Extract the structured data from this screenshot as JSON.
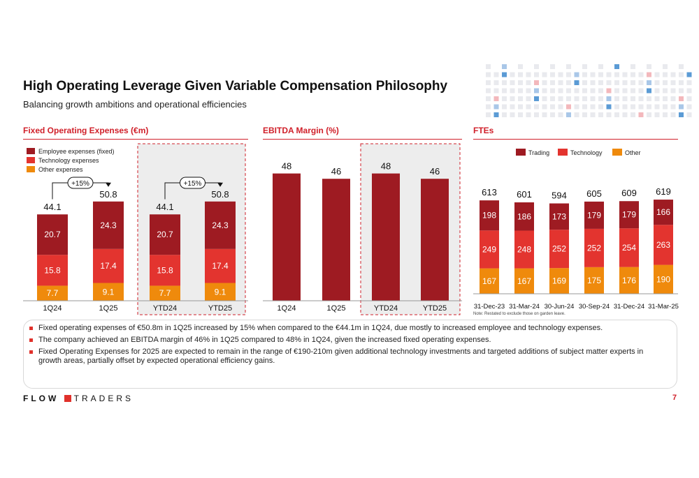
{
  "header": {
    "title": "High Operating Leverage Given Variable Compensation Philosophy",
    "subtitle": "Balancing growth ambitions and operational efficiencies"
  },
  "sections": {
    "fixed_opex": "Fixed Operating Expenses (€m)",
    "ebitda": "EBITDA Margin (%)",
    "ftes": "FTEs"
  },
  "colors": {
    "employee": "#9e1b22",
    "technology": "#e3342f",
    "other": "#ef8a0c",
    "accent": "#d0202a",
    "highlight_bg": "#ededed"
  },
  "chart_data": [
    {
      "id": "fixed_opex",
      "type": "bar",
      "stacked": true,
      "title": "Fixed Operating Expenses (€m)",
      "categories": [
        "1Q24",
        "1Q25",
        "YTD24",
        "YTD25"
      ],
      "series": [
        {
          "name": "Employee expenses (fixed)",
          "values": [
            20.7,
            24.3,
            20.7,
            24.3
          ]
        },
        {
          "name": "Technology expenses",
          "values": [
            15.8,
            17.4,
            15.8,
            17.4
          ]
        },
        {
          "name": "Other expenses",
          "values": [
            7.7,
            9.1,
            7.7,
            9.1
          ]
        }
      ],
      "totals": [
        44.1,
        50.8,
        44.1,
        50.8
      ],
      "annotations": [
        "+15%",
        "+15%"
      ],
      "highlight": [
        "YTD24",
        "YTD25"
      ],
      "legend": "top-left"
    },
    {
      "id": "ebitda",
      "type": "bar",
      "title": "EBITDA Margin (%)",
      "categories": [
        "1Q24",
        "1Q25",
        "YTD24",
        "YTD25"
      ],
      "values": [
        48,
        46,
        48,
        46
      ],
      "highlight": [
        "YTD24",
        "YTD25"
      ]
    },
    {
      "id": "ftes",
      "type": "bar",
      "stacked": true,
      "title": "FTEs",
      "categories": [
        "31-Dec-23",
        "31-Mar-24",
        "30-Jun-24",
        "30-Sep-24",
        "31-Dec-24",
        "31-Mar-25"
      ],
      "series": [
        {
          "name": "Trading",
          "values": [
            198,
            186,
            173,
            179,
            179,
            166
          ]
        },
        {
          "name": "Technology",
          "values": [
            249,
            248,
            252,
            252,
            254,
            263
          ]
        },
        {
          "name": "Other",
          "values": [
            167,
            167,
            169,
            175,
            176,
            190
          ]
        }
      ],
      "totals": [
        613,
        601,
        594,
        605,
        609,
        619
      ],
      "legend": "top",
      "note": "Note: Restated to exclude those on garden leave."
    }
  ],
  "bullets": [
    "Fixed operating expenses of €50.8m in 1Q25 increased by 15% when compared to the €44.1m in 1Q24, due mostly to increased employee and technology expenses.",
    "The company achieved an EBITDA margin of 46% in 1Q25 compared to 48% in 1Q24, given the increased fixed operating expenses.",
    "Fixed Operating Expenses for 2025 are expected to remain in the range of €190-210m given additional technology investments and targeted additions of subject matter experts in growth areas, partially offset by expected operational efficiency gains."
  ],
  "footer": {
    "logo_left": "FLOW",
    "logo_right": "TRADERS",
    "page_number": "7"
  }
}
